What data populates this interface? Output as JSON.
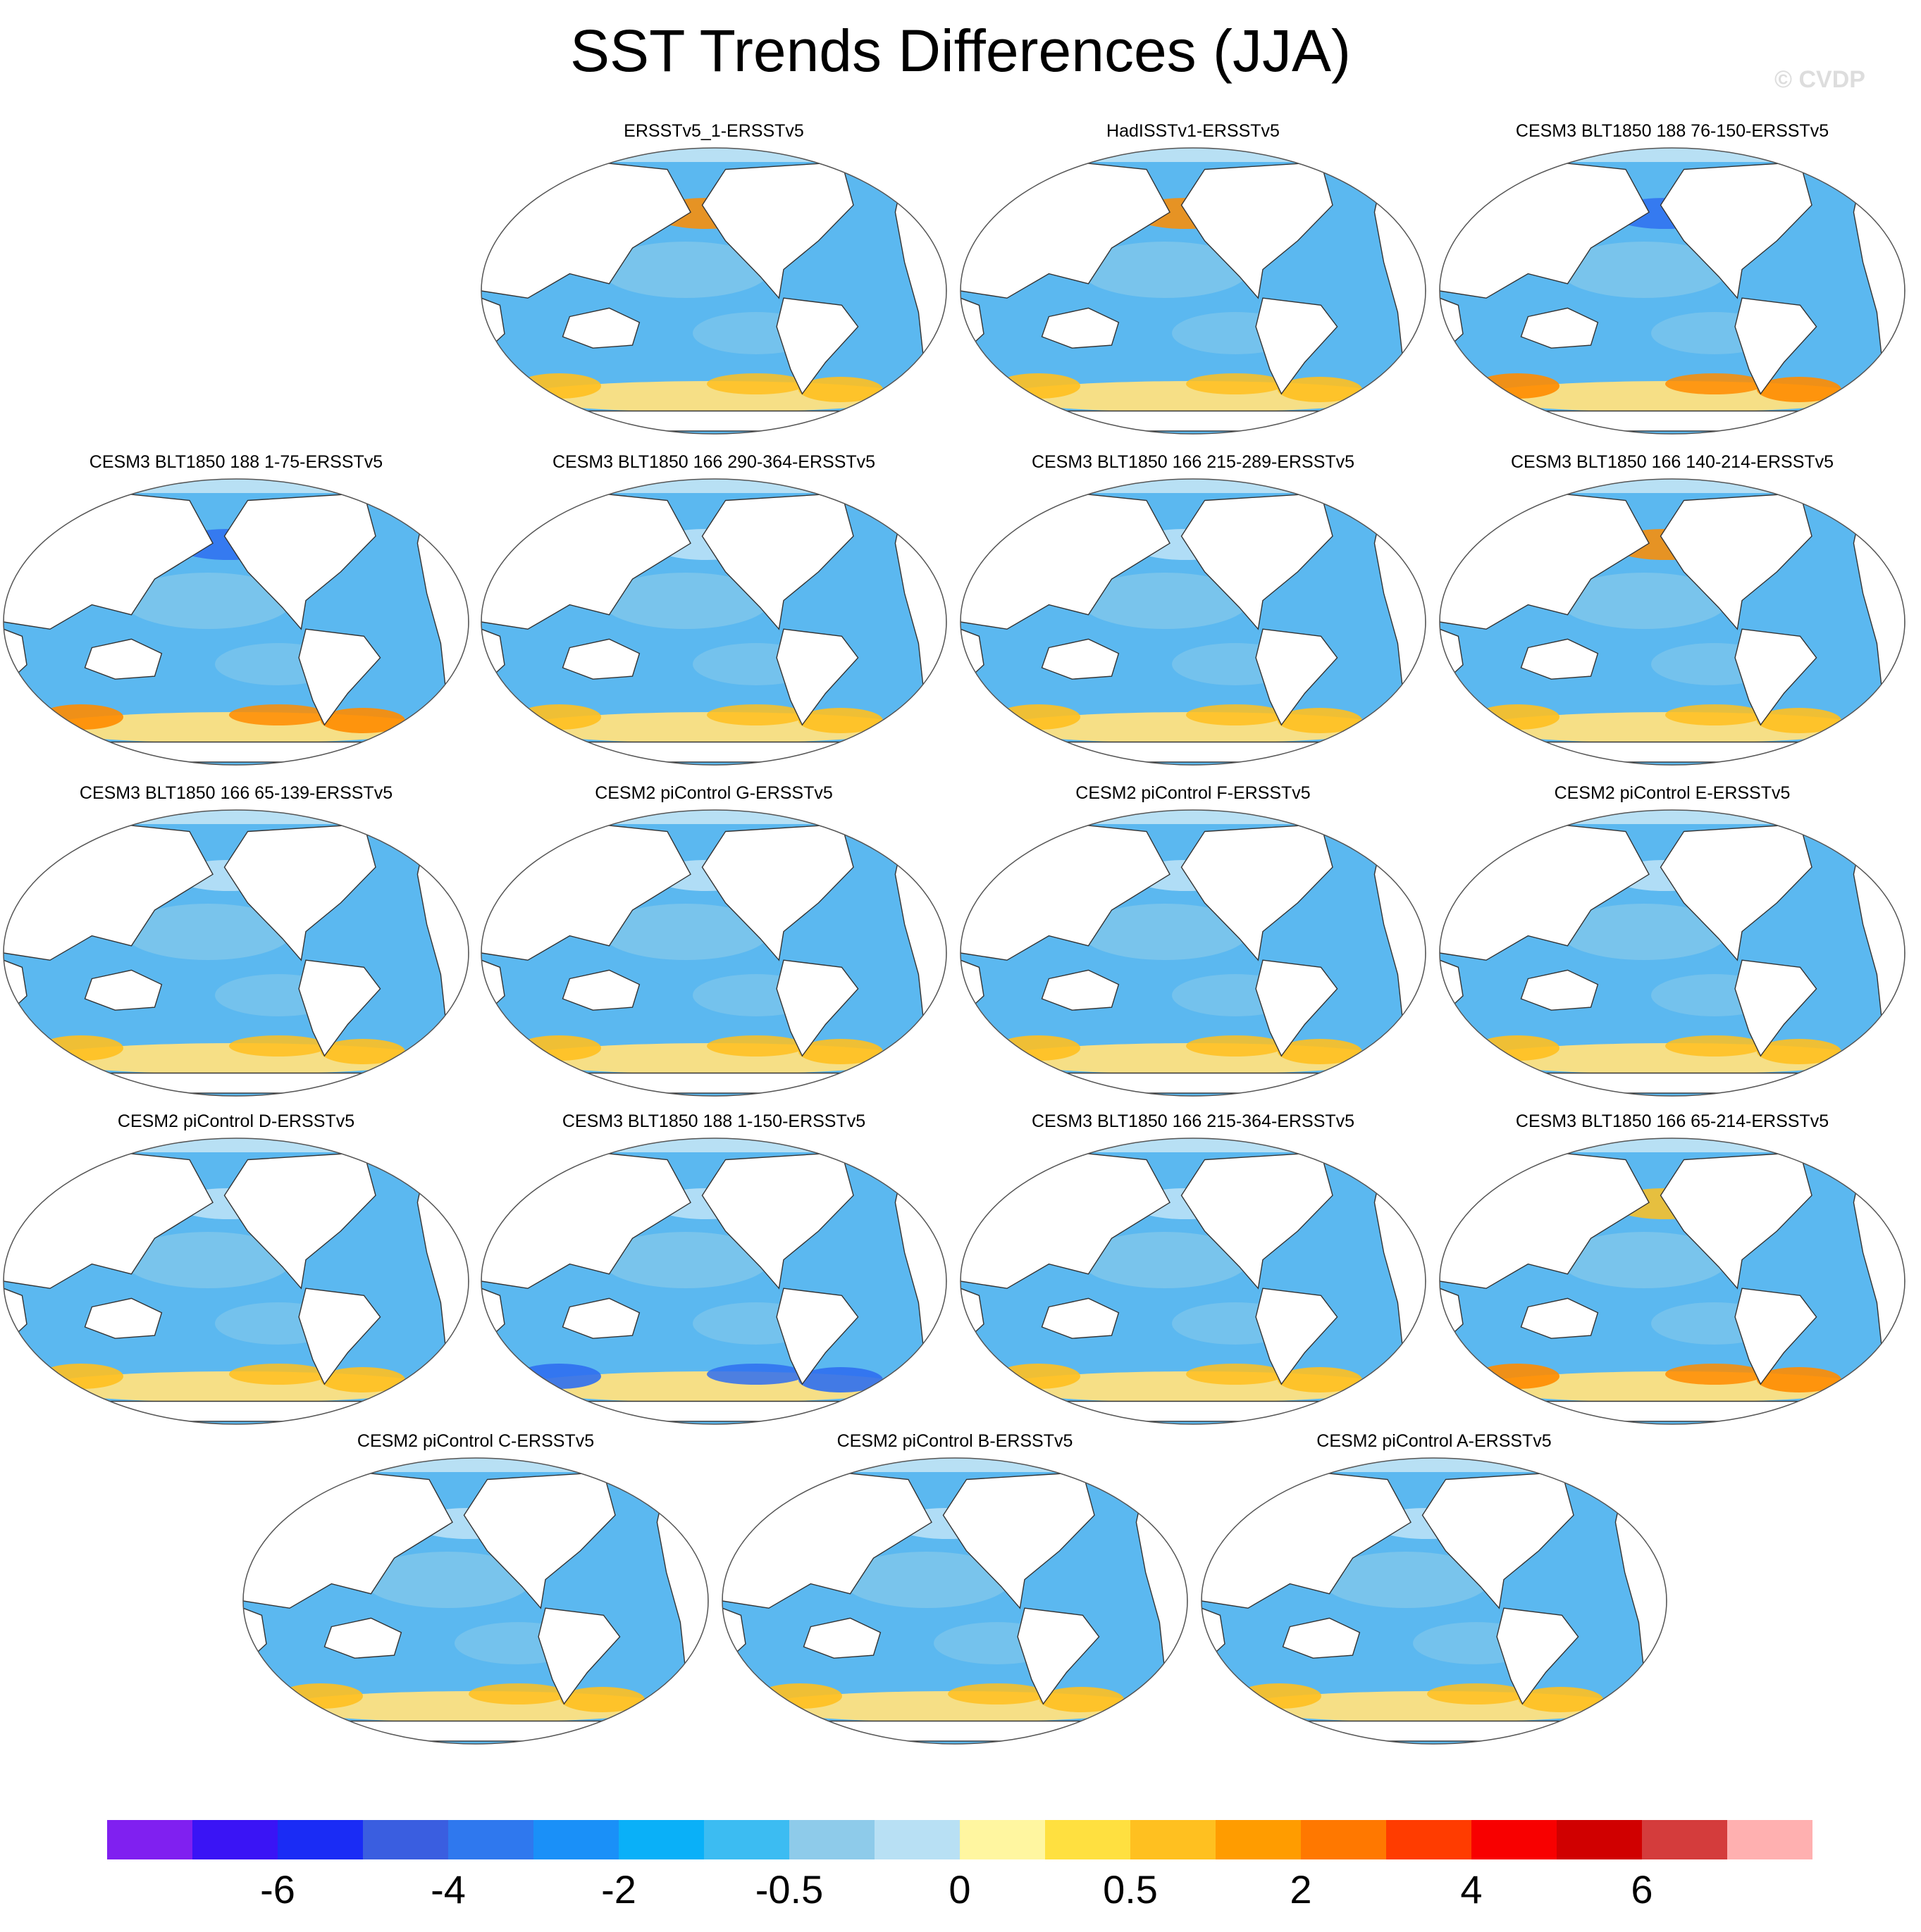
{
  "title": "SST Trends Differences (JJA)",
  "watermark": "© CVDP",
  "map_style": {
    "ocean_color": "#5bb8f0",
    "land_color": "#ffffff",
    "coast_color": "#333333"
  },
  "panels": [
    {
      "label": "ERSSTv5_1-ERSSTv5",
      "highlight": [
        "#ffe080",
        "#ffc020",
        "#ff8c00"
      ]
    },
    {
      "label": "HadISSTv1-ERSSTv5",
      "highlight": [
        "#ffe080",
        "#ffc020",
        "#ff8c00"
      ]
    },
    {
      "label": "CESM3 BLT1850 188 76-150-ERSSTv5",
      "highlight": [
        "#ffe080",
        "#ff8c00",
        "#2f6ff0"
      ]
    },
    {
      "label": "CESM3 BLT1850 188 1-75-ERSSTv5",
      "highlight": [
        "#ffe080",
        "#ff8c00",
        "#2f6ff0"
      ]
    },
    {
      "label": "CESM3 BLT1850 166 290-364-ERSSTv5",
      "highlight": [
        "#ffe080",
        "#ffc020",
        "#bfe3f7"
      ]
    },
    {
      "label": "CESM3 BLT1850 166 215-289-ERSSTv5",
      "highlight": [
        "#ffe080",
        "#ffc020",
        "#bfe3f7"
      ]
    },
    {
      "label": "CESM3 BLT1850 166 140-214-ERSSTv5",
      "highlight": [
        "#ffe080",
        "#ffc020",
        "#ff8c00"
      ]
    },
    {
      "label": "CESM3 BLT1850 166 65-139-ERSSTv5",
      "highlight": [
        "#ffe080",
        "#ffc020",
        "#bfe3f7"
      ]
    },
    {
      "label": "CESM2 piControl G-ERSSTv5",
      "highlight": [
        "#ffe080",
        "#ffc020",
        "#bfe3f7"
      ]
    },
    {
      "label": "CESM2 piControl F-ERSSTv5",
      "highlight": [
        "#ffe080",
        "#ffc020",
        "#bfe3f7"
      ]
    },
    {
      "label": "CESM2 piControl E-ERSSTv5",
      "highlight": [
        "#ffe080",
        "#ffc020",
        "#bfe3f7"
      ]
    },
    {
      "label": "CESM2 piControl D-ERSSTv5",
      "highlight": [
        "#ffe080",
        "#ffc020",
        "#bfe3f7"
      ]
    },
    {
      "label": "CESM3 BLT1850 188 1-150-ERSSTv5",
      "highlight": [
        "#ffe080",
        "#2f6ff0",
        "#bfe3f7"
      ]
    },
    {
      "label": "CESM3 BLT1850 166 215-364-ERSSTv5",
      "highlight": [
        "#ffe080",
        "#ffc020",
        "#bfe3f7"
      ]
    },
    {
      "label": "CESM3 BLT1850 166 65-214-ERSSTv5",
      "highlight": [
        "#ffe080",
        "#ff8c00",
        "#ffc020"
      ]
    },
    {
      "label": "CESM2 piControl C-ERSSTv5",
      "highlight": [
        "#ffe080",
        "#ffc020",
        "#bfe3f7"
      ]
    },
    {
      "label": "CESM2 piControl B-ERSSTv5",
      "highlight": [
        "#ffe080",
        "#ffc020",
        "#bfe3f7"
      ]
    },
    {
      "label": "CESM2 piControl A-ERSSTv5",
      "highlight": [
        "#ffe080",
        "#ffc020",
        "#bfe3f7"
      ]
    }
  ],
  "colorbar": {
    "colors": [
      "#8020f0",
      "#3a14f5",
      "#1a2cf5",
      "#3a5ee0",
      "#2f78ee",
      "#1a90f8",
      "#0ab0f8",
      "#3cbcf2",
      "#8ecbea",
      "#b8e0f4",
      "#fff6a0",
      "#ffe040",
      "#ffc020",
      "#ff9c00",
      "#ff7800",
      "#ff3c00",
      "#f80000",
      "#d00000",
      "#d43c3c",
      "#ffb0b0"
    ],
    "labels": [
      "-6",
      "-4",
      "-2",
      "-0.5",
      "0",
      "0.5",
      "2",
      "4",
      "6"
    ],
    "label_boundaries": [
      2,
      4,
      6,
      8,
      10,
      12,
      14,
      16,
      18
    ]
  }
}
